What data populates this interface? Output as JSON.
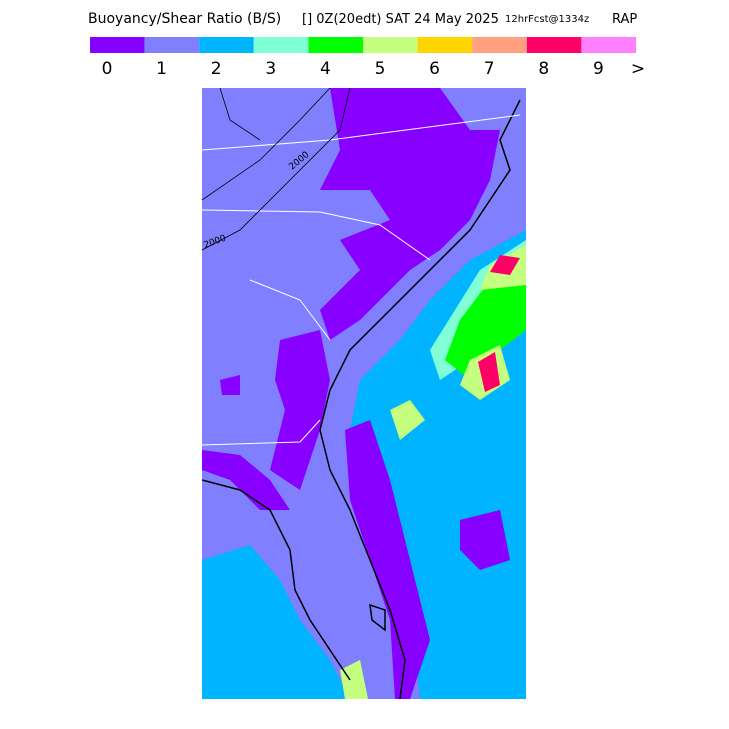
{
  "header": {
    "title": "Buoyancy/Shear Ratio (B/S)",
    "valid": "[] 0Z(20edt) SAT 24 May 2025",
    "forecast": "12hrFcst@1334z",
    "model": "RAP"
  },
  "legend": {
    "colors": [
      "#8800ff",
      "#8080ff",
      "#00b4ff",
      "#80ffd4",
      "#00ff00",
      "#c4ff80",
      "#ffd500",
      "#ffa080",
      "#ff0066",
      "#ff80ff"
    ],
    "labels": [
      "0",
      "1",
      "2",
      "3",
      "4",
      "5",
      "6",
      "7",
      "8",
      "9",
      ">"
    ]
  },
  "map": {
    "contour_labels": [
      "2000",
      "2000"
    ]
  }
}
